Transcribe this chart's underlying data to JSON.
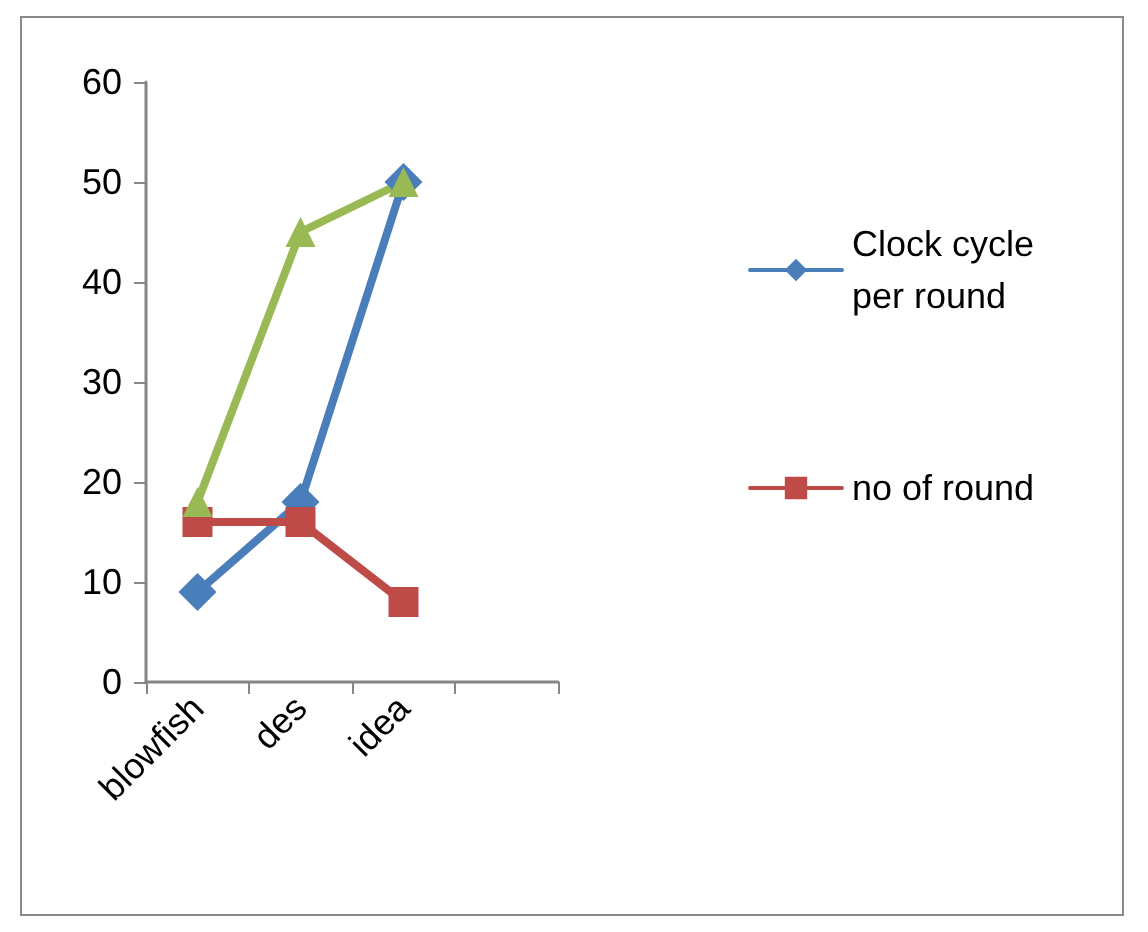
{
  "chart_data": {
    "type": "line",
    "categories": [
      "blowfish",
      "des",
      "idea",
      null
    ],
    "series": [
      {
        "name": "Clock cycle per round",
        "color": "#4a7ebb",
        "marker": "diamond",
        "values": [
          9,
          18,
          50,
          null
        ]
      },
      {
        "name": "no of round",
        "color": "#be4b48",
        "marker": "square",
        "values": [
          16,
          16,
          8,
          null
        ]
      },
      {
        "color": "#98b954",
        "marker": "triangle",
        "values": [
          18,
          45,
          50,
          null
        ]
      }
    ],
    "ylim": [
      0,
      60
    ],
    "yticks": [
      0,
      10,
      20,
      30,
      40,
      50,
      60
    ],
    "grid": false,
    "legend": "right",
    "line_style": "solid"
  }
}
